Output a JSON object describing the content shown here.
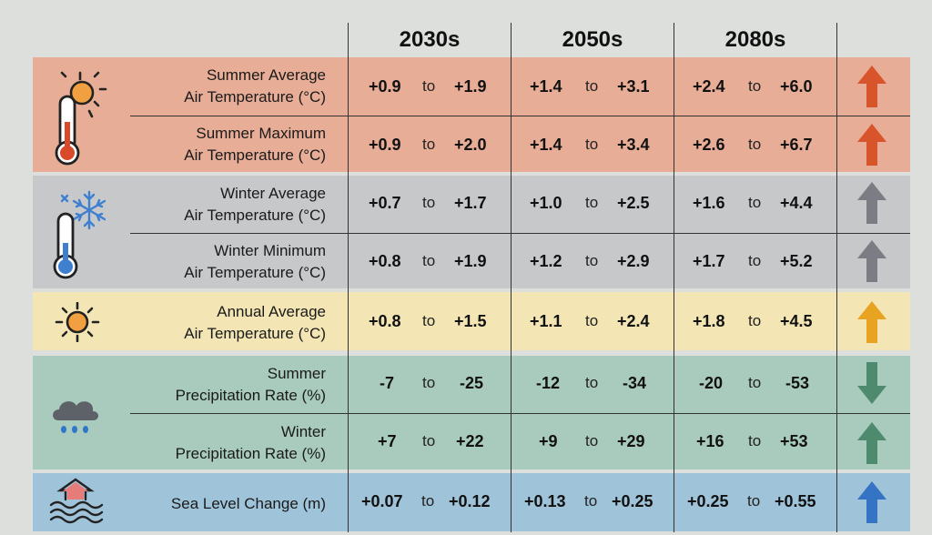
{
  "columns": [
    "2030s",
    "2050s",
    "2080s"
  ],
  "connector": "to",
  "rows": [
    {
      "label": [
        "Summer Average",
        "Air Temperature (°C)"
      ],
      "values": [
        [
          "+0.9",
          "+1.9"
        ],
        [
          "+1.4",
          "+3.1"
        ],
        [
          "+2.4",
          "+6.0"
        ]
      ],
      "trend": "up",
      "arrow_color": "#d8542a"
    },
    {
      "label": [
        "Summer Maximum",
        "Air Temperature (°C)"
      ],
      "values": [
        [
          "+0.9",
          "+2.0"
        ],
        [
          "+1.4",
          "+3.4"
        ],
        [
          "+2.6",
          "+6.7"
        ]
      ],
      "trend": "up",
      "arrow_color": "#d8542a"
    },
    {
      "label": [
        "Winter Average",
        "Air Temperature (°C)"
      ],
      "values": [
        [
          "+0.7",
          "+1.7"
        ],
        [
          "+1.0",
          "+2.5"
        ],
        [
          "+1.6",
          "+4.4"
        ]
      ],
      "trend": "up",
      "arrow_color": "#7b7c84"
    },
    {
      "label": [
        "Winter Minimum",
        "Air Temperature (°C)"
      ],
      "values": [
        [
          "+0.8",
          "+1.9"
        ],
        [
          "+1.2",
          "+2.9"
        ],
        [
          "+1.7",
          "+5.2"
        ]
      ],
      "trend": "up",
      "arrow_color": "#7b7c84"
    },
    {
      "label": [
        "Annual Average",
        "Air Temperature (°C)"
      ],
      "values": [
        [
          "+0.8",
          "+1.5"
        ],
        [
          "+1.1",
          "+2.4"
        ],
        [
          "+1.8",
          "+4.5"
        ]
      ],
      "trend": "up",
      "arrow_color": "#e8a323"
    },
    {
      "label": [
        "Summer",
        "Precipitation Rate (%)"
      ],
      "values": [
        [
          "-7",
          "-25"
        ],
        [
          "-12",
          "-34"
        ],
        [
          "-20",
          "-53"
        ]
      ],
      "trend": "down",
      "arrow_color": "#4e8a6e"
    },
    {
      "label": [
        "Winter",
        "Precipitation Rate (%)"
      ],
      "values": [
        [
          "+7",
          "+22"
        ],
        [
          "+9",
          "+29"
        ],
        [
          "+16",
          "+53"
        ]
      ],
      "trend": "up",
      "arrow_color": "#4e8a6e"
    },
    {
      "label": [
        "Sea Level Change (m)"
      ],
      "values": [
        [
          "+0.07",
          "+0.12"
        ],
        [
          "+0.13",
          "+0.25"
        ],
        [
          "+0.25",
          "+0.55"
        ]
      ],
      "trend": "up",
      "arrow_color": "#3574c4"
    }
  ],
  "groups": [
    {
      "name": "summer-temperature",
      "color": "#e8ad96",
      "icon": "thermometer-sun-icon"
    },
    {
      "name": "winter-temperature",
      "color": "#c7c8ca",
      "icon": "thermometer-snowflake-icon"
    },
    {
      "name": "annual-temperature",
      "color": "#f3e6b4",
      "icon": "sun-icon"
    },
    {
      "name": "precipitation",
      "color": "#a8cbbd",
      "icon": "rain-cloud-icon"
    },
    {
      "name": "sea-level",
      "color": "#9fc3d9",
      "icon": "sea-level-rise-icon"
    }
  ]
}
